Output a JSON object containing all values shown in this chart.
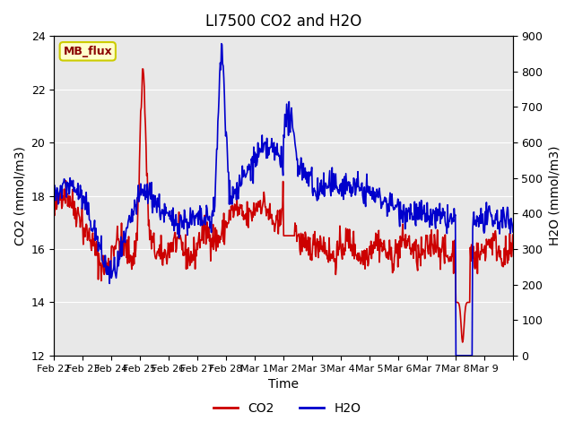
{
  "title": "LI7500 CO2 and H2O",
  "xlabel": "Time",
  "ylabel_left": "CO2 (mmol/m3)",
  "ylabel_right": "H2O (mmol/m3)",
  "ylim_left": [
    12,
    24
  ],
  "ylim_right": [
    0,
    900
  ],
  "yticks_left": [
    12,
    14,
    16,
    18,
    20,
    22,
    24
  ],
  "yticks_right": [
    0,
    100,
    200,
    300,
    400,
    500,
    600,
    700,
    800,
    900
  ],
  "xtick_positions": [
    0,
    1,
    2,
    3,
    4,
    5,
    6,
    7,
    8,
    9,
    10,
    11,
    12,
    13,
    14,
    15,
    16
  ],
  "xtick_labels": [
    "Feb 22",
    "Feb 23",
    "Feb 24",
    "Feb 25",
    "Feb 26",
    "Feb 27",
    "Feb 28",
    "Mar 1",
    "Mar 2",
    "Mar 3",
    "Mar 4",
    "Mar 5",
    "Mar 6",
    "Mar 7",
    "Mar 8",
    "Mar 9",
    ""
  ],
  "co2_color": "#CC0000",
  "h2o_color": "#0000CC",
  "bg_color": "#E8E8E8",
  "annotation_text": "MB_flux",
  "annotation_bg": "#FFFFCC",
  "annotation_border": "#CCCC00",
  "legend_co2": "CO2",
  "legend_h2o": "H2O",
  "line_width": 1.2
}
